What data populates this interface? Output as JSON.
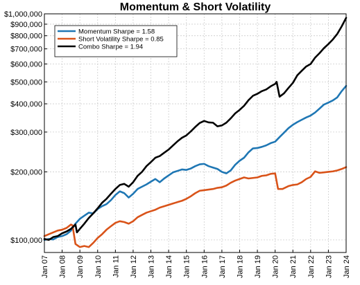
{
  "chart_data": {
    "type": "line",
    "title": "Momentum & Short Volatility",
    "xlabel": "",
    "ylabel": "",
    "y_scale": "log",
    "ylim": [
      88000,
      1000000
    ],
    "xlim": [
      "2007-01",
      "2024-01"
    ],
    "x_ticks": [
      "Jan 07",
      "Jan 08",
      "Jan 09",
      "Jan 10",
      "Jan 11",
      "Jan 12",
      "Jan 13",
      "Jan 14",
      "Jan 15",
      "Jan 16",
      "Jan 17",
      "Jan 18",
      "Jan 19",
      "Jan 20",
      "Jan 21",
      "Jan 22",
      "Jan 23",
      "Jan 24"
    ],
    "y_ticks": [
      {
        "value": 100000,
        "label": "$100,000"
      },
      {
        "value": 200000,
        "label": "$200,000"
      },
      {
        "value": 300000,
        "label": "$300,000"
      },
      {
        "value": 400000,
        "label": "$400,000"
      },
      {
        "value": 500000,
        "label": "$500,000"
      },
      {
        "value": 600000,
        "label": "$600,000"
      },
      {
        "value": 700000,
        "label": "$700,000"
      },
      {
        "value": 800000,
        "label": "$800,000"
      },
      {
        "value": 900000,
        "label": "$900,000"
      },
      {
        "value": 1000000,
        "label": "$1,000,000"
      }
    ],
    "grid": true,
    "legend_position": "top-left",
    "series": [
      {
        "name": "Momentum Sharpe = 1.58",
        "color": "#1f77b4",
        "points": [
          [
            "2007-01",
            100000
          ],
          [
            "2007-04",
            101000
          ],
          [
            "2007-07",
            100500
          ],
          [
            "2007-10",
            103000
          ],
          [
            "2008-01",
            104000
          ],
          [
            "2008-04",
            106000
          ],
          [
            "2008-07",
            110000
          ],
          [
            "2008-10",
            118000
          ],
          [
            "2009-01",
            124000
          ],
          [
            "2009-04",
            128000
          ],
          [
            "2009-07",
            132000
          ],
          [
            "2009-10",
            131000
          ],
          [
            "2010-01",
            137000
          ],
          [
            "2010-04",
            141000
          ],
          [
            "2010-07",
            144000
          ],
          [
            "2010-10",
            150000
          ],
          [
            "2011-01",
            158000
          ],
          [
            "2011-04",
            164000
          ],
          [
            "2011-07",
            161000
          ],
          [
            "2011-10",
            154000
          ],
          [
            "2012-01",
            160000
          ],
          [
            "2012-04",
            168000
          ],
          [
            "2012-07",
            172000
          ],
          [
            "2012-10",
            176000
          ],
          [
            "2013-01",
            181000
          ],
          [
            "2013-04",
            186000
          ],
          [
            "2013-07",
            180000
          ],
          [
            "2013-10",
            187000
          ],
          [
            "2014-01",
            193000
          ],
          [
            "2014-04",
            199000
          ],
          [
            "2014-07",
            202000
          ],
          [
            "2014-10",
            205000
          ],
          [
            "2015-01",
            204000
          ],
          [
            "2015-04",
            207000
          ],
          [
            "2015-07",
            212000
          ],
          [
            "2015-10",
            216000
          ],
          [
            "2016-01",
            217000
          ],
          [
            "2016-04",
            212000
          ],
          [
            "2016-07",
            209000
          ],
          [
            "2016-10",
            206000
          ],
          [
            "2017-01",
            200000
          ],
          [
            "2017-04",
            197000
          ],
          [
            "2017-07",
            203000
          ],
          [
            "2017-10",
            215000
          ],
          [
            "2018-01",
            224000
          ],
          [
            "2018-04",
            231000
          ],
          [
            "2018-07",
            244000
          ],
          [
            "2018-10",
            254000
          ],
          [
            "2019-01",
            255000
          ],
          [
            "2019-04",
            258000
          ],
          [
            "2019-07",
            262000
          ],
          [
            "2019-10",
            268000
          ],
          [
            "2020-01",
            272000
          ],
          [
            "2020-04",
            285000
          ],
          [
            "2020-07",
            298000
          ],
          [
            "2020-10",
            312000
          ],
          [
            "2021-01",
            323000
          ],
          [
            "2021-04",
            332000
          ],
          [
            "2021-07",
            340000
          ],
          [
            "2021-10",
            348000
          ],
          [
            "2022-01",
            355000
          ],
          [
            "2022-04",
            366000
          ],
          [
            "2022-07",
            381000
          ],
          [
            "2022-10",
            397000
          ],
          [
            "2023-01",
            405000
          ],
          [
            "2023-04",
            414000
          ],
          [
            "2023-07",
            427000
          ],
          [
            "2023-10",
            455000
          ],
          [
            "2024-01",
            480000
          ]
        ]
      },
      {
        "name": "Short Volatility Sharpe = 0.85",
        "color": "#d95319",
        "points": [
          [
            "2007-01",
            104000
          ],
          [
            "2007-04",
            106000
          ],
          [
            "2007-07",
            108000
          ],
          [
            "2007-10",
            110000
          ],
          [
            "2008-01",
            111000
          ],
          [
            "2008-04",
            113000
          ],
          [
            "2008-07",
            117000
          ],
          [
            "2008-08",
            116000
          ],
          [
            "2008-10",
            96000
          ],
          [
            "2009-01",
            93000
          ],
          [
            "2009-04",
            94000
          ],
          [
            "2009-07",
            93000
          ],
          [
            "2009-10",
            97000
          ],
          [
            "2010-01",
            102000
          ],
          [
            "2010-04",
            106000
          ],
          [
            "2010-07",
            111000
          ],
          [
            "2010-10",
            115000
          ],
          [
            "2011-01",
            119000
          ],
          [
            "2011-04",
            121000
          ],
          [
            "2011-07",
            120000
          ],
          [
            "2011-10",
            118000
          ],
          [
            "2012-01",
            121000
          ],
          [
            "2012-04",
            126000
          ],
          [
            "2012-07",
            129000
          ],
          [
            "2012-10",
            132000
          ],
          [
            "2013-01",
            134000
          ],
          [
            "2013-04",
            136000
          ],
          [
            "2013-07",
            139000
          ],
          [
            "2013-10",
            141000
          ],
          [
            "2014-01",
            143000
          ],
          [
            "2014-04",
            145000
          ],
          [
            "2014-07",
            147000
          ],
          [
            "2014-10",
            149000
          ],
          [
            "2015-01",
            152000
          ],
          [
            "2015-04",
            156000
          ],
          [
            "2015-07",
            161000
          ],
          [
            "2015-10",
            165000
          ],
          [
            "2016-01",
            166000
          ],
          [
            "2016-04",
            167000
          ],
          [
            "2016-07",
            168000
          ],
          [
            "2016-10",
            170000
          ],
          [
            "2017-01",
            171000
          ],
          [
            "2017-04",
            174000
          ],
          [
            "2017-07",
            179000
          ],
          [
            "2017-10",
            183000
          ],
          [
            "2018-01",
            186000
          ],
          [
            "2018-04",
            189000
          ],
          [
            "2018-07",
            187000
          ],
          [
            "2018-10",
            188000
          ],
          [
            "2019-01",
            189000
          ],
          [
            "2019-04",
            192000
          ],
          [
            "2019-07",
            193000
          ],
          [
            "2019-10",
            196000
          ],
          [
            "2020-01",
            197000
          ],
          [
            "2020-03",
            168000
          ],
          [
            "2020-06",
            168000
          ],
          [
            "2020-10",
            173000
          ],
          [
            "2021-01",
            175000
          ],
          [
            "2021-04",
            176000
          ],
          [
            "2021-07",
            180000
          ],
          [
            "2021-10",
            186000
          ],
          [
            "2022-01",
            190000
          ],
          [
            "2022-04",
            201000
          ],
          [
            "2022-07",
            198000
          ],
          [
            "2022-10",
            199000
          ],
          [
            "2023-01",
            200000
          ],
          [
            "2023-04",
            201000
          ],
          [
            "2023-07",
            203000
          ],
          [
            "2023-10",
            206000
          ],
          [
            "2024-01",
            210000
          ]
        ]
      },
      {
        "name": "Combo Sharpe = 1.94",
        "color": "#000000",
        "points": [
          [
            "2007-01",
            101000
          ],
          [
            "2007-04",
            100000
          ],
          [
            "2007-07",
            103000
          ],
          [
            "2007-10",
            104000
          ],
          [
            "2008-01",
            107000
          ],
          [
            "2008-04",
            109000
          ],
          [
            "2008-07",
            112000
          ],
          [
            "2008-10",
            117000
          ],
          [
            "2008-11",
            108000
          ],
          [
            "2009-01",
            112000
          ],
          [
            "2009-04",
            118000
          ],
          [
            "2009-07",
            125000
          ],
          [
            "2009-10",
            131000
          ],
          [
            "2010-01",
            138000
          ],
          [
            "2010-04",
            146000
          ],
          [
            "2010-07",
            152000
          ],
          [
            "2010-10",
            160000
          ],
          [
            "2011-01",
            168000
          ],
          [
            "2011-04",
            175000
          ],
          [
            "2011-07",
            177000
          ],
          [
            "2011-10",
            172000
          ],
          [
            "2012-01",
            180000
          ],
          [
            "2012-04",
            192000
          ],
          [
            "2012-07",
            200000
          ],
          [
            "2012-10",
            212000
          ],
          [
            "2013-01",
            221000
          ],
          [
            "2013-04",
            231000
          ],
          [
            "2013-07",
            235000
          ],
          [
            "2013-10",
            243000
          ],
          [
            "2014-01",
            251000
          ],
          [
            "2014-04",
            262000
          ],
          [
            "2014-07",
            273000
          ],
          [
            "2014-10",
            283000
          ],
          [
            "2015-01",
            290000
          ],
          [
            "2015-04",
            302000
          ],
          [
            "2015-07",
            316000
          ],
          [
            "2015-10",
            329000
          ],
          [
            "2016-01",
            336000
          ],
          [
            "2016-04",
            331000
          ],
          [
            "2016-07",
            330000
          ],
          [
            "2016-10",
            318000
          ],
          [
            "2017-01",
            321000
          ],
          [
            "2017-04",
            330000
          ],
          [
            "2017-07",
            345000
          ],
          [
            "2017-10",
            363000
          ],
          [
            "2018-01",
            376000
          ],
          [
            "2018-04",
            392000
          ],
          [
            "2018-07",
            415000
          ],
          [
            "2018-10",
            434000
          ],
          [
            "2019-01",
            443000
          ],
          [
            "2019-04",
            455000
          ],
          [
            "2019-07",
            463000
          ],
          [
            "2019-10",
            478000
          ],
          [
            "2020-01",
            490000
          ],
          [
            "2020-02",
            500000
          ],
          [
            "2020-04",
            430000
          ],
          [
            "2020-07",
            445000
          ],
          [
            "2020-10",
            470000
          ],
          [
            "2021-01",
            495000
          ],
          [
            "2021-04",
            535000
          ],
          [
            "2021-07",
            560000
          ],
          [
            "2021-10",
            585000
          ],
          [
            "2022-01",
            600000
          ],
          [
            "2022-04",
            640000
          ],
          [
            "2022-07",
            670000
          ],
          [
            "2022-10",
            705000
          ],
          [
            "2023-01",
            735000
          ],
          [
            "2023-04",
            770000
          ],
          [
            "2023-07",
            815000
          ],
          [
            "2023-10",
            880000
          ],
          [
            "2024-01",
            960000
          ]
        ]
      }
    ]
  }
}
